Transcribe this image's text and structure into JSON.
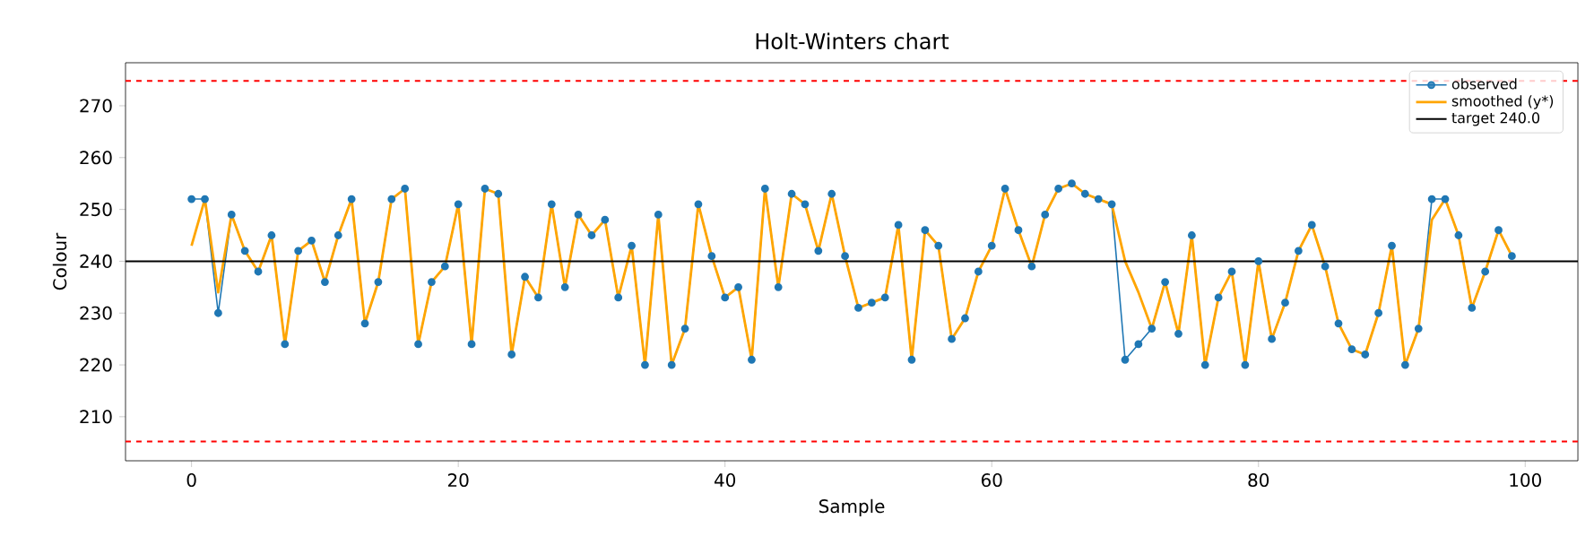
{
  "chart_data": {
    "type": "line",
    "title": "Holt-Winters chart",
    "xlabel": "Sample",
    "ylabel": "Colour",
    "x": [
      0,
      1,
      2,
      3,
      4,
      5,
      6,
      7,
      8,
      9,
      10,
      11,
      12,
      13,
      14,
      15,
      16,
      17,
      18,
      19,
      20,
      21,
      22,
      23,
      24,
      25,
      26,
      27,
      28,
      29,
      30,
      31,
      32,
      33,
      34,
      35,
      36,
      37,
      38,
      39,
      40,
      41,
      42,
      43,
      44,
      45,
      46,
      47,
      48,
      49,
      50,
      51,
      52,
      53,
      54,
      55,
      56,
      57,
      58,
      59,
      60,
      61,
      62,
      63,
      64,
      65,
      66,
      67,
      68,
      69,
      70,
      71,
      72,
      73,
      74,
      75,
      76,
      77,
      78,
      79,
      80,
      81,
      82,
      83,
      84,
      85,
      86,
      87,
      88,
      89,
      90,
      91,
      92,
      93,
      94,
      95,
      96,
      97,
      98,
      99
    ],
    "series": [
      {
        "name": "observed",
        "color": "#1f77b4",
        "marker": "circle",
        "values": [
          252,
          252,
          230,
          249,
          242,
          238,
          245,
          224,
          242,
          244,
          236,
          245,
          252,
          228,
          236,
          252,
          254,
          224,
          236,
          239,
          251,
          224,
          254,
          253,
          222,
          237,
          233,
          251,
          235,
          249,
          245,
          248,
          233,
          243,
          220,
          249,
          220,
          227,
          251,
          241,
          233,
          235,
          221,
          254,
          235,
          253,
          251,
          242,
          253,
          241,
          231,
          232,
          233,
          247,
          221,
          246,
          243,
          225,
          229,
          238,
          243,
          254,
          246,
          239,
          249,
          254,
          255,
          253,
          252,
          251,
          221,
          224,
          227,
          236,
          226,
          245,
          220,
          233,
          238,
          220,
          240,
          225,
          232,
          242,
          247,
          239,
          228,
          223,
          222,
          230,
          243,
          220,
          227,
          252,
          252,
          245,
          231,
          238,
          246,
          241
        ]
      },
      {
        "name": "smoothed (y*)",
        "color": "#ffa500",
        "marker": "none",
        "values": [
          243,
          252,
          234,
          249,
          242,
          238,
          245,
          224,
          242,
          244,
          236,
          245,
          252,
          228,
          236,
          252,
          254,
          224,
          236,
          239,
          251,
          224,
          254,
          253,
          222,
          237,
          233,
          251,
          235,
          249,
          245,
          248,
          233,
          243,
          220,
          249,
          220,
          227,
          251,
          241,
          233,
          235,
          221,
          254,
          235,
          253,
          251,
          242,
          253,
          241,
          231,
          232,
          233,
          247,
          221,
          246,
          243,
          225,
          229,
          238,
          243,
          254,
          246,
          239,
          249,
          254,
          255,
          253,
          252,
          251,
          240,
          234,
          227,
          236,
          226,
          245,
          220,
          233,
          238,
          220,
          240,
          225,
          232,
          242,
          247,
          239,
          228,
          223,
          222,
          230,
          243,
          220,
          227,
          248,
          252,
          245,
          231,
          238,
          246,
          241
        ]
      }
    ],
    "ref_lines": [
      {
        "axis": "y",
        "value": 240.0,
        "label": "target 240.0",
        "color": "#000000",
        "line_style": "solid"
      },
      {
        "axis": "y",
        "value": 274.8,
        "color": "#ff0000",
        "line_style": "dashed"
      },
      {
        "axis": "y",
        "value": 205.2,
        "color": "#ff0000",
        "line_style": "dashed"
      }
    ],
    "xlim": [
      -4.95,
      103.95
    ],
    "ylim": [
      201.5,
      278.3
    ],
    "xticks": [
      0,
      20,
      40,
      60,
      80,
      100
    ],
    "yticks": [
      210,
      220,
      230,
      240,
      250,
      260,
      270
    ],
    "grid": false,
    "legend": "top right"
  }
}
